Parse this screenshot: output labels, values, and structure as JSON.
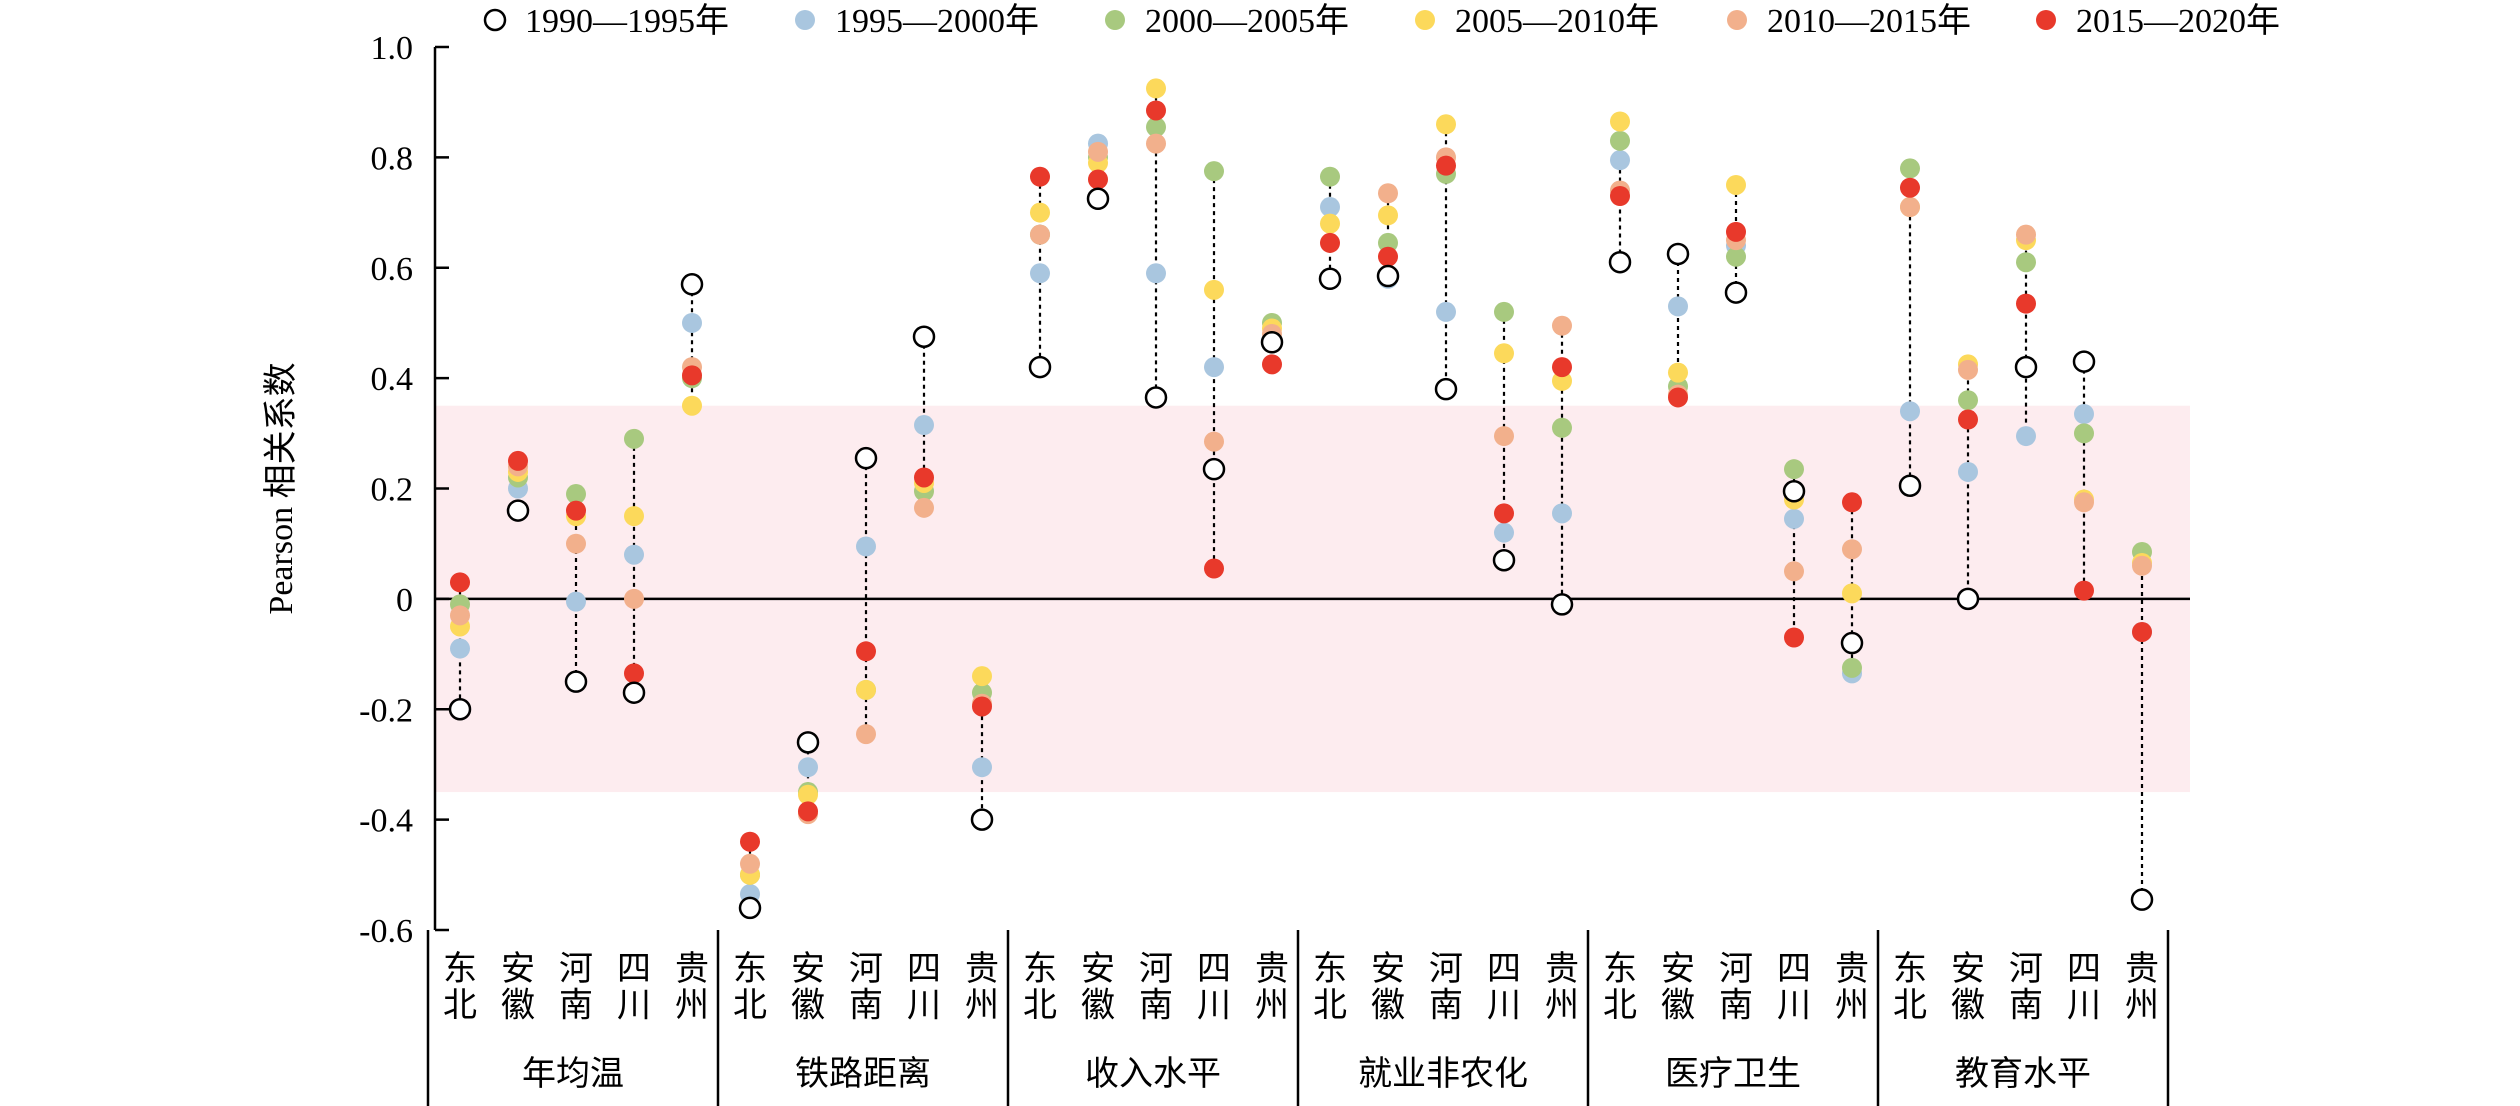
{
  "chart_data": {
    "type": "scatter",
    "ylabel": "Pearson 相关系数",
    "ylim": [
      -0.6,
      1.0
    ],
    "yticks": [
      "1.0",
      "0.8",
      "0.6",
      "0.4",
      "0.2",
      "0",
      "-0.2",
      "-0.4",
      "-0.6"
    ],
    "yticks_values": [
      1.0,
      0.8,
      0.6,
      0.4,
      0.2,
      0,
      -0.2,
      -0.4,
      -0.6
    ],
    "band_range": [
      -0.35,
      0.35
    ],
    "band_color": "#fdecef",
    "groups": [
      {
        "name": "年均温",
        "regions": [
          "东北",
          "安徽",
          "河南",
          "四川",
          "贵州"
        ]
      },
      {
        "name": "铁路距离",
        "regions": [
          "东北",
          "安徽",
          "河南",
          "四川",
          "贵州"
        ]
      },
      {
        "name": "收入水平",
        "regions": [
          "东北",
          "安徽",
          "河南",
          "四川",
          "贵州"
        ]
      },
      {
        "name": "就业非农化",
        "regions": [
          "东北",
          "安徽",
          "河南",
          "四川",
          "贵州"
        ]
      },
      {
        "name": "医疗卫生",
        "regions": [
          "东北",
          "安徽",
          "河南",
          "四川",
          "贵州"
        ]
      },
      {
        "name": "教育水平",
        "regions": [
          "东北",
          "安徽",
          "河南",
          "四川",
          "贵州"
        ]
      }
    ],
    "legend_position": "top",
    "series": [
      {
        "name": "1990—1995年",
        "color": "#ffffff",
        "hollow": true,
        "values": [
          -0.2,
          0.16,
          -0.15,
          -0.17,
          0.57,
          -0.56,
          -0.26,
          0.255,
          0.475,
          -0.4,
          0.42,
          0.725,
          0.365,
          0.235,
          0.465,
          0.58,
          0.585,
          0.38,
          0.07,
          -0.01,
          0.61,
          0.625,
          0.555,
          0.195,
          -0.08,
          0.205,
          0.0,
          0.42,
          0.43,
          -0.545
        ]
      },
      {
        "name": "1995—2000年",
        "color": "#a9c6df",
        "values": [
          -0.09,
          0.2,
          -0.005,
          0.08,
          0.5,
          -0.535,
          -0.305,
          0.095,
          0.315,
          -0.305,
          0.59,
          0.825,
          0.59,
          0.42,
          0.47,
          0.71,
          0.58,
          0.52,
          0.12,
          0.155,
          0.795,
          0.53,
          0.64,
          0.145,
          -0.135,
          0.34,
          0.23,
          0.295,
          0.335,
          -0.06
        ]
      },
      {
        "name": "2000—2005年",
        "color": "#a8c97f",
        "values": [
          -0.01,
          0.22,
          0.19,
          0.29,
          0.4,
          -0.5,
          -0.35,
          -0.165,
          0.195,
          -0.17,
          0.66,
          0.8,
          0.855,
          0.775,
          0.5,
          0.765,
          0.645,
          0.77,
          0.52,
          0.31,
          0.83,
          0.385,
          0.62,
          0.235,
          -0.125,
          0.78,
          0.36,
          0.61,
          0.3,
          0.085
        ]
      },
      {
        "name": "2005—2010年",
        "color": "#fcd95b",
        "values": [
          -0.05,
          0.23,
          0.15,
          0.15,
          0.35,
          -0.5,
          -0.355,
          -0.165,
          0.21,
          -0.14,
          0.7,
          0.79,
          0.925,
          0.56,
          0.49,
          0.68,
          0.695,
          0.86,
          0.445,
          0.395,
          0.865,
          0.41,
          0.75,
          0.18,
          0.01,
          0.71,
          0.425,
          0.65,
          0.18,
          0.065
        ]
      },
      {
        "name": "2010—2015年",
        "color": "#f2b08c",
        "values": [
          -0.03,
          0.24,
          0.1,
          0.0,
          0.42,
          -0.48,
          -0.39,
          -0.245,
          0.165,
          -0.19,
          0.66,
          0.81,
          0.825,
          0.285,
          0.48,
          0.58,
          0.735,
          0.8,
          0.295,
          0.495,
          0.74,
          0.37,
          0.65,
          0.05,
          0.09,
          0.71,
          0.415,
          0.66,
          0.175,
          0.06
        ]
      },
      {
        "name": "2015—2020年",
        "color": "#e8392b",
        "values": [
          0.03,
          0.25,
          0.16,
          -0.135,
          0.405,
          -0.44,
          -0.385,
          -0.095,
          0.22,
          -0.195,
          0.765,
          0.76,
          0.885,
          0.055,
          0.425,
          0.645,
          0.62,
          0.785,
          0.155,
          0.42,
          0.73,
          0.365,
          0.665,
          -0.07,
          0.175,
          0.745,
          0.325,
          0.535,
          0.015,
          -0.06
        ]
      }
    ]
  }
}
